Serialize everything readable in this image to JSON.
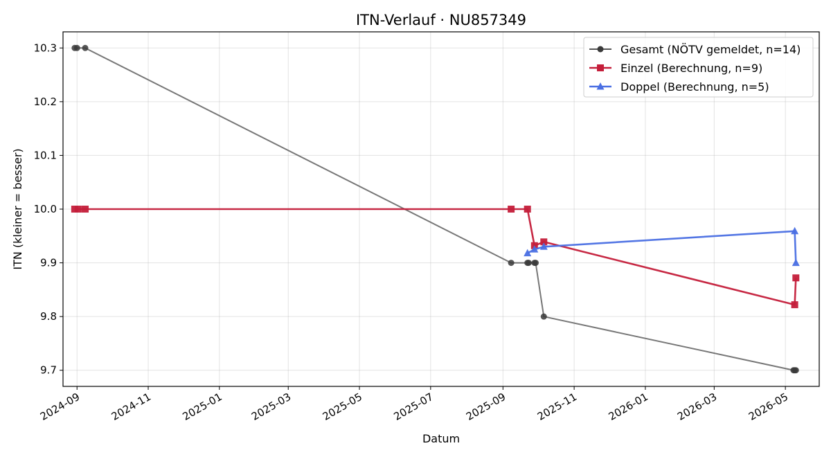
{
  "chart_data": {
    "type": "line",
    "title": "ITN-Verlauf · NU857349",
    "xlabel": "Datum",
    "ylabel": "ITN  (kleiner = besser)",
    "x_type": "date",
    "xlim": [
      "2024-08-20",
      "2026-05-30"
    ],
    "ylim": [
      9.67,
      10.33
    ],
    "x_ticks": [
      "2024-09",
      "2024-11",
      "2025-01",
      "2025-03",
      "2025-05",
      "2025-07",
      "2025-09",
      "2025-11",
      "2026-01",
      "2026-03",
      "2026-05"
    ],
    "y_ticks": [
      "9.7",
      "9.8",
      "9.9",
      "10.0",
      "10.1",
      "10.2",
      "10.3"
    ],
    "grid": true,
    "legend_position": "top-right",
    "series": [
      {
        "name": "Gesamt (NÖTV gemeldet, n=14)",
        "color": "#555555",
        "marker": "circle",
        "points": [
          {
            "x": "2024-08-30",
            "y": 10.3
          },
          {
            "x": "2024-09-01",
            "y": 10.3
          },
          {
            "x": "2024-09-08",
            "y": 10.3
          },
          {
            "x": "2025-09-08",
            "y": 9.9
          },
          {
            "x": "2025-09-22",
            "y": 9.9
          },
          {
            "x": "2025-09-23",
            "y": 9.9
          },
          {
            "x": "2025-09-28",
            "y": 9.9
          },
          {
            "x": "2025-09-29",
            "y": 9.9
          },
          {
            "x": "2025-10-06",
            "y": 9.8
          },
          {
            "x": "2026-05-08",
            "y": 9.7
          },
          {
            "x": "2026-05-09",
            "y": 9.7
          },
          {
            "x": "2026-05-10",
            "y": 9.7
          }
        ]
      },
      {
        "name": "Einzel (Berechnung, n=9)",
        "color": "#c41e3a",
        "marker": "square",
        "points": [
          {
            "x": "2024-08-30",
            "y": 10.0
          },
          {
            "x": "2024-09-02",
            "y": 10.0
          },
          {
            "x": "2024-09-08",
            "y": 10.0
          },
          {
            "x": "2025-09-08",
            "y": 10.0
          },
          {
            "x": "2025-09-22",
            "y": 10.0
          },
          {
            "x": "2025-09-28",
            "y": 9.932
          },
          {
            "x": "2025-10-06",
            "y": 9.939
          },
          {
            "x": "2026-05-09",
            "y": 9.822
          },
          {
            "x": "2026-05-10",
            "y": 9.872
          }
        ]
      },
      {
        "name": "Doppel (Berechnung, n=5)",
        "color": "#4a6fe3",
        "marker": "triangle",
        "points": [
          {
            "x": "2025-09-22",
            "y": 9.918
          },
          {
            "x": "2025-09-28",
            "y": 9.925
          },
          {
            "x": "2025-10-06",
            "y": 9.93
          },
          {
            "x": "2026-05-09",
            "y": 9.959
          },
          {
            "x": "2026-05-10",
            "y": 9.9
          }
        ]
      }
    ]
  }
}
